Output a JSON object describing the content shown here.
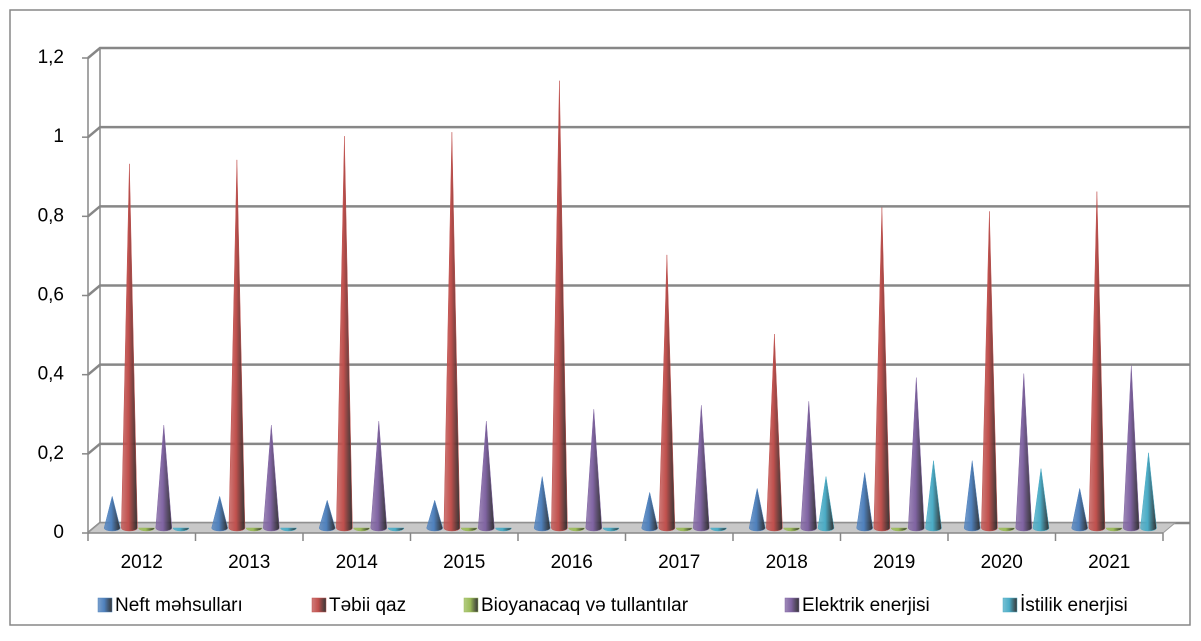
{
  "chart_data": {
    "type": "cone",
    "categories": [
      "2012",
      "2013",
      "2014",
      "2015",
      "2016",
      "2017",
      "2018",
      "2019",
      "2020",
      "2021"
    ],
    "series": [
      {
        "name": "Neft məhsulları",
        "color": "#4f81bd",
        "values": [
          0.08,
          0.08,
          0.07,
          0.07,
          0.13,
          0.09,
          0.1,
          0.14,
          0.17,
          0.1
        ]
      },
      {
        "name": "Təbii qaz",
        "color": "#c0504d",
        "values": [
          0.92,
          0.93,
          0.99,
          1.0,
          1.13,
          0.69,
          0.49,
          0.81,
          0.8,
          0.85
        ]
      },
      {
        "name": "Bioyanacaq və tullantılar",
        "color": "#9bbb59",
        "values": [
          0,
          0,
          0,
          0,
          0,
          0,
          0,
          0,
          0,
          0
        ]
      },
      {
        "name": "Elektrik enerjisi",
        "color": "#8064a2",
        "values": [
          0.26,
          0.26,
          0.27,
          0.27,
          0.3,
          0.31,
          0.32,
          0.38,
          0.39,
          0.41
        ]
      },
      {
        "name": "İstilik enerjisi",
        "color": "#4bacc6",
        "values": [
          0,
          0,
          0,
          0,
          0,
          0,
          0.13,
          0.17,
          0.15,
          0.19
        ]
      }
    ],
    "ylim": [
      0,
      1.2
    ],
    "yticks": [
      0,
      {
        "value": 0.2,
        "label": "0,2"
      },
      {
        "value": 0.4,
        "label": "0,4"
      },
      {
        "value": 0.6,
        "label": "0,6"
      },
      {
        "value": 0.8,
        "label": "0,8"
      },
      1,
      {
        "value": 1.2,
        "label": "1,2"
      }
    ],
    "grid": true,
    "legend": "bottom"
  }
}
